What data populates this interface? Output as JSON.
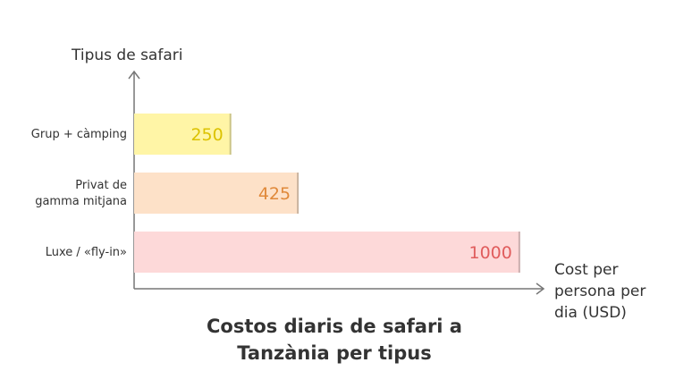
{
  "chart_data": {
    "type": "bar",
    "orientation": "horizontal",
    "title": "Costos diaris de safari a\nTanzània per tipus",
    "ylabel": "Tipus de safari",
    "xlabel": "Cost per\npersona per\ndia (USD)",
    "categories": [
      "Grup + càmping",
      "Privat de\ngamma mitjana",
      "Luxe / «fly-in»"
    ],
    "values": [
      250,
      425,
      1000
    ],
    "colors": [
      "#fff5a6",
      "#fde1c8",
      "#fdd9d9"
    ],
    "label_colors": [
      "#dcc200",
      "#e0893a",
      "#e05c5c"
    ],
    "xlim": [
      0,
      1063
    ]
  }
}
